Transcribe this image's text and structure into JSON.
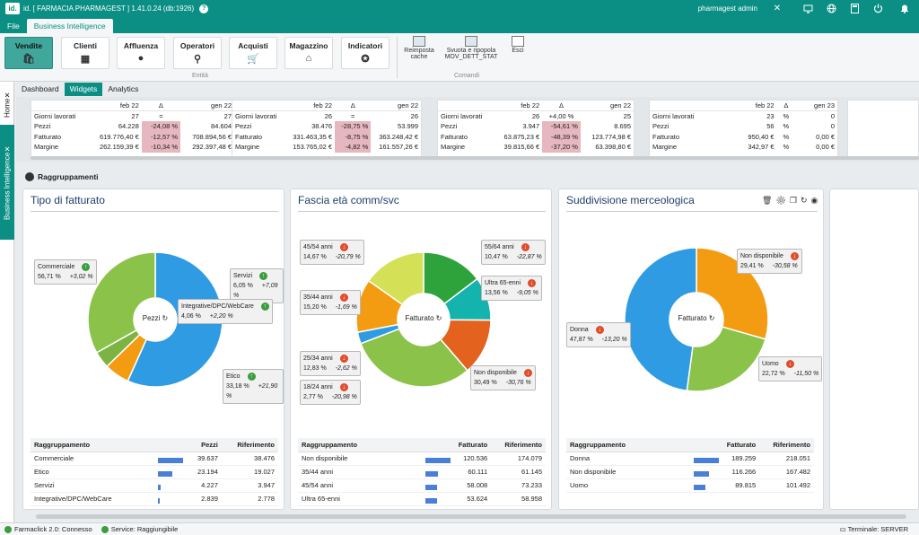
{
  "titlebar": {
    "logo": "id.",
    "title": "id. [ FARMACIA PHARMAGEST ]  1.41.0.24 (db:1926)",
    "user": "pharmagest admin",
    "help": "?",
    "close": "✕"
  },
  "menu": {
    "file": "File",
    "bi": "Business Intelligence"
  },
  "ribbon": {
    "entity": [
      {
        "label": "Vendite",
        "icon": "🛍"
      },
      {
        "label": "Clienti",
        "icon": "▦"
      },
      {
        "label": "Affluenza",
        "icon": "●"
      },
      {
        "label": "Operatori",
        "icon": "⚲"
      },
      {
        "label": "Acquisti",
        "icon": "🛒"
      },
      {
        "label": "Magazzino",
        "icon": "⌂"
      },
      {
        "label": "Indicatori",
        "icon": "✪"
      }
    ],
    "entity_group": "Entità",
    "commands": [
      {
        "label": "Reimposta cache"
      },
      {
        "label": "Svuota e ripopola MOV_DETT_STAT"
      },
      {
        "label": "Esci"
      }
    ],
    "commands_group": "Comandi"
  },
  "side": {
    "home": "Home",
    "bi": "Business Intelligence"
  },
  "subtabs": [
    "Dashboard",
    "Widgets",
    "Analytics"
  ],
  "kpi": [
    {
      "head": [
        "",
        "feb 22",
        "Δ",
        "gen 22"
      ],
      "rows": [
        [
          "Giorni lavorati",
          "27",
          "=",
          "27"
        ],
        [
          "Pezzi",
          "64.228",
          "-24,08 %",
          "84.604"
        ],
        [
          "Fatturato",
          "619.776,40 €",
          "-12,57 %",
          "708.894,56 €"
        ],
        [
          "Margine",
          "262.159,39 €",
          "-10,34 %",
          "292.397,48 €"
        ]
      ]
    },
    {
      "head": [
        "",
        "feb 22",
        "Δ",
        "gen 22"
      ],
      "rows": [
        [
          "Giorni lavorati",
          "26",
          "=",
          "26"
        ],
        [
          "Pezzi",
          "38.476",
          "-28,75 %",
          "53.999"
        ],
        [
          "Fatturato",
          "331.463,35 €",
          "-8,75 %",
          "363.248,42 €"
        ],
        [
          "Margine",
          "153.765,02 €",
          "-4,82 %",
          "161.557,26 €"
        ]
      ]
    },
    {
      "head": [
        "",
        "feb 22",
        "Δ",
        "gen 22"
      ],
      "rows": [
        [
          "Giorni lavorati",
          "26",
          "+4,00 %",
          "25"
        ],
        [
          "Pezzi",
          "3.947",
          "-54,61 %",
          "8.695"
        ],
        [
          "Fatturato",
          "63.875,23 €",
          "-48,39 %",
          "123.774,98 €"
        ],
        [
          "Margine",
          "39.815,66 €",
          "-37,20 %",
          "63.398,80 €"
        ]
      ]
    },
    {
      "head": [
        "",
        "feb 22",
        "Δ",
        "gen 23"
      ],
      "rows": [
        [
          "Giorni lavorati",
          "23",
          "%",
          "0"
        ],
        [
          "Pezzi",
          "56",
          "%",
          "0"
        ],
        [
          "Fatturato",
          "950,40 €",
          "%",
          "0,00 €"
        ],
        [
          "Margine",
          "342,97 €",
          "%",
          "0,00 €"
        ]
      ]
    }
  ],
  "section": {
    "title": "Raggruppamenti"
  },
  "panels": [
    {
      "title": "Tipo di fatturato",
      "center": "Pezzi",
      "slices": [
        {
          "label": "Commerciale",
          "pct": 56.71,
          "color": "#2f9be3"
        },
        {
          "label": "Servizi",
          "pct": 6.05,
          "color": "#f39c12"
        },
        {
          "label": "Integrative/DPC/WebCare",
          "pct": 4.06,
          "color": "#7cb342"
        },
        {
          "label": "Etico",
          "pct": 33.18,
          "color": "#8bc34a"
        }
      ],
      "callouts": [
        {
          "name": "Commerciale",
          "value": "56,71 %",
          "delta": "+3,02 %",
          "dir": "up"
        },
        {
          "name": "Servizi",
          "value": "6,05 %",
          "delta": "+7,09 %",
          "dir": "up"
        },
        {
          "name": "Integrative/DPC/WebCare",
          "value": "4,06 %",
          "delta": "+2,20 %",
          "dir": "up"
        },
        {
          "name": "Etico",
          "value": "33,18 %",
          "delta": "+21,90 %",
          "dir": "up"
        }
      ],
      "table": {
        "headers": [
          "Raggruppamento",
          "Pezzi",
          "Riferimento"
        ],
        "rows": [
          [
            "Commerciale",
            "39.637",
            "38.476"
          ],
          [
            "Etico",
            "23.194",
            "19.027"
          ],
          [
            "Servizi",
            "4.227",
            "3.947"
          ],
          [
            "Integrative/DPC/WebCare",
            "2.839",
            "2.778"
          ]
        ],
        "bars": [
          1.0,
          0.585,
          0.107,
          0.072
        ]
      }
    },
    {
      "title": "Fascia età comm/svc",
      "center": "Fatturato",
      "slices": [
        {
          "label": "45/54 anni",
          "pct": 14.67,
          "color": "#2ea33c"
        },
        {
          "label": "55/64 anni",
          "pct": 10.47,
          "color": "#14b3ad"
        },
        {
          "label": "Ultra 65-enni",
          "pct": 13.56,
          "color": "#e3621e"
        },
        {
          "label": "Non disponibile",
          "pct": 30.49,
          "color": "#8bc34a"
        },
        {
          "label": "18/24 anni",
          "pct": 2.77,
          "color": "#2f9be3"
        },
        {
          "label": "25/34 anni",
          "pct": 12.83,
          "color": "#f39c12"
        },
        {
          "label": "35/44 anni",
          "pct": 15.2,
          "color": "#d4e157"
        }
      ],
      "callouts": [
        {
          "name": "45/54 anni",
          "value": "14,67 %",
          "delta": "-20,79 %",
          "dir": "down"
        },
        {
          "name": "55/64 anni",
          "value": "10,47 %",
          "delta": "-22,87 %",
          "dir": "down"
        },
        {
          "name": "35/44 anni",
          "value": "15,20 %",
          "delta": "-1,69 %",
          "dir": "down"
        },
        {
          "name": "Ultra 65-enni",
          "value": "13,56 %",
          "delta": "-9,05 %",
          "dir": "down"
        },
        {
          "name": "25/34 anni",
          "value": "12,83 %",
          "delta": "-2,62 %",
          "dir": "down"
        },
        {
          "name": "Non disponibile",
          "value": "30,49 %",
          "delta": "-30,76 %",
          "dir": "down"
        },
        {
          "name": "18/24 anni",
          "value": "2,77 %",
          "delta": "-20,98 %",
          "dir": "down"
        }
      ],
      "table": {
        "headers": [
          "Raggruppamento",
          "Fatturato",
          "Riferimento"
        ],
        "rows": [
          [
            "Non disponibile",
            "120.536",
            "174.079"
          ],
          [
            "35/44 anni",
            "60.111",
            "61.145"
          ],
          [
            "45/54 anni",
            "58.008",
            "73.233"
          ],
          [
            "Ultra 65-enni",
            "53.624",
            "58.958"
          ]
        ],
        "bars": [
          1.0,
          0.5,
          0.48,
          0.45
        ]
      }
    },
    {
      "title": "Suddivisione merceologica",
      "center": "Fatturato",
      "slices": [
        {
          "label": "Non disponibile",
          "pct": 29.41,
          "color": "#f39c12"
        },
        {
          "label": "Uomo",
          "pct": 22.72,
          "color": "#8bc34a"
        },
        {
          "label": "Donna",
          "pct": 47.87,
          "color": "#2f9be3"
        }
      ],
      "callouts": [
        {
          "name": "Non disponibile",
          "value": "29,41 %",
          "delta": "-30,58 %",
          "dir": "down"
        },
        {
          "name": "Donna",
          "value": "47,87 %",
          "delta": "-13,20 %",
          "dir": "down"
        },
        {
          "name": "Uomo",
          "value": "22,72 %",
          "delta": "-11,50 %",
          "dir": "down"
        }
      ],
      "table": {
        "headers": [
          "Raggruppamento",
          "Fatturato",
          "Riferimento"
        ],
        "rows": [
          [
            "Donna",
            "189.259",
            "218.051"
          ],
          [
            "Non disponibile",
            "116.266",
            "167.482"
          ],
          [
            "Uomo",
            "89.815",
            "101.492"
          ]
        ],
        "bars": [
          1.0,
          0.61,
          0.47
        ]
      }
    }
  ],
  "status": {
    "farmaclick": "Farmaclick 2.0: Connesso",
    "service": "Service: Raggiungibile",
    "terminal": "Terminale: SERVER"
  }
}
